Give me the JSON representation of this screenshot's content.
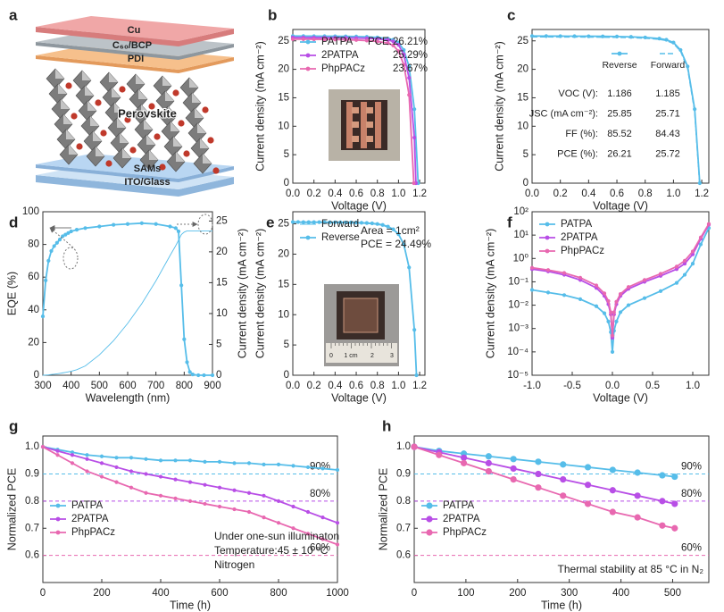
{
  "diagram": {
    "panel_label": "a",
    "layers": [
      "Cu",
      "C₆₀/BCP",
      "PDI",
      "Perovskite",
      "SAMs",
      "ITO/Glass"
    ]
  },
  "chart_data": [
    {
      "type": "line",
      "panel_label": "b",
      "xlabel": "Voltage (V)",
      "ylabel": "Current density (mA cm⁻²)",
      "xlim": [
        0,
        1.25
      ],
      "xticks": [
        {
          "value": 0,
          "label": "0.0"
        },
        0.2,
        0.4,
        0.6,
        0.8,
        {
          "value": 1,
          "label": "1.0"
        },
        1.2
      ],
      "ylim": [
        0,
        27
      ],
      "yticks": [
        0,
        5,
        10,
        15,
        20,
        25
      ],
      "legend": "upper left",
      "legend_note": "PCE:",
      "series": [
        {
          "name": "PATPA",
          "color": "#56bde9",
          "line_style": "solid",
          "marker": "dot",
          "label_note": "26.21%",
          "x": [
            0,
            0.1,
            0.2,
            0.3,
            0.4,
            0.5,
            0.6,
            0.7,
            0.8,
            0.9,
            0.95,
            1.0,
            1.05,
            1.1,
            1.15,
            1.186
          ],
          "values": [
            25.85,
            25.84,
            25.83,
            25.82,
            25.81,
            25.79,
            25.76,
            25.7,
            25.6,
            25.4,
            25.2,
            24.7,
            23.4,
            20.5,
            13.0,
            0
          ]
        },
        {
          "name": "2PATPA",
          "color": "#b84ee6",
          "line_style": "solid",
          "marker": "dot",
          "label_note": "25.29%",
          "x": [
            0,
            0.1,
            0.2,
            0.3,
            0.4,
            0.5,
            0.6,
            0.7,
            0.8,
            0.9,
            0.95,
            1.0,
            1.05,
            1.1,
            1.15,
            1.165
          ],
          "values": [
            25.6,
            25.59,
            25.58,
            25.57,
            25.55,
            25.53,
            25.5,
            25.45,
            25.35,
            25.15,
            24.9,
            24.3,
            22.6,
            18.5,
            8.0,
            0
          ]
        },
        {
          "name": "PhpPACz",
          "color": "#e868b0",
          "line_style": "solid",
          "marker": "dot",
          "label_note": "23.67%",
          "x": [
            0,
            0.1,
            0.2,
            0.3,
            0.4,
            0.5,
            0.6,
            0.7,
            0.8,
            0.9,
            0.95,
            1.0,
            1.05,
            1.1,
            1.145
          ],
          "values": [
            25.3,
            25.29,
            25.28,
            25.26,
            25.24,
            25.2,
            25.15,
            25.05,
            24.9,
            24.6,
            24.2,
            23.2,
            20.8,
            15.5,
            0
          ]
        }
      ]
    },
    {
      "type": "line",
      "panel_label": "c",
      "xlabel": "Voltage (V)",
      "ylabel": "Current density (mA cm⁻²)",
      "xlim": [
        0,
        1.25
      ],
      "xticks": [
        {
          "value": 0,
          "label": "0.0"
        },
        0.2,
        0.4,
        0.6,
        0.8,
        {
          "value": 1,
          "label": "1.0"
        },
        1.2
      ],
      "ylim": [
        0,
        27
      ],
      "yticks": [
        0,
        5,
        10,
        15,
        20,
        25
      ],
      "legend": "upper center",
      "series": [
        {
          "name": "Reverse",
          "color": "#56bde9",
          "line_style": "solid",
          "marker": "dot",
          "x": [
            0,
            0.1,
            0.2,
            0.3,
            0.4,
            0.5,
            0.6,
            0.7,
            0.8,
            0.9,
            0.95,
            1.0,
            1.05,
            1.1,
            1.15,
            1.186
          ],
          "values": [
            25.85,
            25.84,
            25.83,
            25.82,
            25.81,
            25.79,
            25.76,
            25.7,
            25.6,
            25.4,
            25.2,
            24.7,
            23.4,
            20.5,
            13.0,
            0
          ]
        },
        {
          "name": "Forward",
          "color": "#56bde9",
          "line_style": "dashed",
          "marker": "none",
          "x": [
            0,
            0.1,
            0.2,
            0.3,
            0.4,
            0.5,
            0.6,
            0.7,
            0.8,
            0.9,
            0.95,
            1.0,
            1.05,
            1.1,
            1.15,
            1.185
          ],
          "values": [
            25.71,
            25.7,
            25.69,
            25.68,
            25.67,
            25.65,
            25.62,
            25.57,
            25.47,
            25.27,
            25.05,
            24.55,
            23.2,
            20.2,
            12.6,
            0
          ]
        }
      ],
      "table": {
        "rows": [
          {
            "label": "VOC (V):",
            "values": [
              1.186,
              1.185
            ]
          },
          {
            "label": "JSC (mA cm⁻²):",
            "values": [
              25.85,
              25.71
            ]
          },
          {
            "label": "FF (%):",
            "values": [
              85.52,
              84.43
            ]
          },
          {
            "label": "PCE (%):",
            "values": [
              26.21,
              25.72
            ]
          }
        ]
      }
    },
    {
      "type": "line",
      "panel_label": "d",
      "xlabel": "Wavelength (nm)",
      "ylabel": "EQE (%)",
      "y2label": "Current density (mA cm⁻²)",
      "xlim": [
        300,
        900
      ],
      "xticks": [
        300,
        400,
        500,
        600,
        700,
        800,
        900
      ],
      "ylim": [
        0,
        100
      ],
      "yticks": [
        0,
        20,
        40,
        60,
        80,
        100
      ],
      "y2lim": [
        0,
        26.5
      ],
      "y2ticks": [
        0,
        5,
        10,
        15,
        20,
        25
      ],
      "x": [
        300,
        310,
        320,
        330,
        340,
        350,
        360,
        370,
        380,
        390,
        400,
        420,
        450,
        500,
        550,
        600,
        650,
        700,
        750,
        770,
        780,
        790,
        800,
        810,
        820,
        830,
        850,
        870,
        900
      ],
      "series": [
        {
          "color": "#56bde9",
          "line_style": "solid",
          "marker": "dot",
          "values": [
            36,
            58,
            70,
            76,
            79,
            81,
            83,
            85,
            86,
            87,
            88,
            89,
            90,
            91,
            92,
            92.5,
            93,
            92.5,
            91,
            90,
            88,
            55,
            22,
            8,
            2,
            0.5,
            0,
            0,
            0
          ]
        },
        {
          "color": "#56bde9",
          "line_style": "thin",
          "marker": "none",
          "axis": "y2",
          "values": [
            0,
            0.03,
            0.07,
            0.12,
            0.17,
            0.23,
            0.3,
            0.38,
            0.46,
            0.55,
            0.65,
            0.9,
            1.5,
            3.3,
            5.6,
            8.4,
            11.6,
            15.3,
            19.4,
            21.0,
            21.9,
            22.8,
            23.2,
            23.4,
            23.4,
            23.4,
            23.4,
            23.4,
            23.4
          ]
        }
      ]
    },
    {
      "type": "line",
      "panel_label": "e",
      "xlabel": "Voltage (V)",
      "ylabel": "Current density (mA cm⁻²)",
      "xlim": [
        0,
        1.25
      ],
      "xticks": [
        {
          "value": 0,
          "label": "0.0"
        },
        0.2,
        0.4,
        0.6,
        0.8,
        {
          "value": 1,
          "label": "1.0"
        },
        1.2
      ],
      "ylim": [
        0,
        27
      ],
      "yticks": [
        0,
        5,
        10,
        15,
        20,
        25
      ],
      "legend": "upper left",
      "annotations": [
        "Area = 1cm²",
        "PCE = 24.49%"
      ],
      "inset_labels": [
        "0",
        "1 cm",
        "2",
        "3"
      ],
      "x": [
        0,
        0.05,
        0.1,
        0.15,
        0.2,
        0.25,
        0.3,
        0.35,
        0.4,
        0.45,
        0.5,
        0.55,
        0.6,
        0.65,
        0.7,
        0.75,
        0.8,
        0.85,
        0.9,
        0.95,
        1.0,
        1.05,
        1.1,
        1.15,
        1.17
      ],
      "series": [
        {
          "name": "Forward",
          "color": "#56bde9",
          "line_style": "thin",
          "marker": "none",
          "values": [
            25.2,
            25.2,
            25.19,
            25.19,
            25.18,
            25.18,
            25.17,
            25.17,
            25.16,
            25.15,
            25.14,
            25.13,
            25.11,
            25.08,
            25.04,
            24.98,
            24.88,
            24.72,
            24.45,
            24.0,
            23.2,
            21.5,
            17.7,
            7.3,
            0
          ]
        },
        {
          "name": "Reverse",
          "color": "#56bde9",
          "line_style": "solid",
          "marker": "dot",
          "values": [
            25.3,
            25.3,
            25.29,
            25.29,
            25.28,
            25.28,
            25.27,
            25.27,
            25.26,
            25.25,
            25.24,
            25.23,
            25.21,
            25.18,
            25.14,
            25.08,
            24.98,
            24.82,
            24.55,
            24.1,
            23.3,
            21.6,
            17.8,
            7.5,
            0
          ]
        }
      ]
    },
    {
      "type": "line",
      "panel_label": "f",
      "xlabel": "Voltage (V)",
      "ylabel": "Current density (mA cm⁻²)",
      "yscale": "log",
      "xlim": [
        -1,
        1.2
      ],
      "xticks": [
        {
          "value": -1,
          "label": "-1.0"
        },
        -0.5,
        {
          "value": 0,
          "label": "0.0"
        },
        0.5,
        {
          "value": 1,
          "label": "1.0"
        }
      ],
      "ylim": [
        1e-05,
        100
      ],
      "yticks": [
        {
          "value": 1e-05,
          "label": "10⁻⁵"
        },
        {
          "value": 0.0001,
          "label": "10⁻⁴"
        },
        {
          "value": 0.001,
          "label": "10⁻³"
        },
        {
          "value": 0.01,
          "label": "10⁻²"
        },
        {
          "value": 0.1,
          "label": "10⁻¹"
        },
        {
          "value": 1,
          "label": "10⁰"
        },
        {
          "value": 10,
          "label": "10¹"
        },
        {
          "value": 100,
          "label": "10²"
        }
      ],
      "legend": "upper left",
      "x": [
        -1,
        -0.8,
        -0.6,
        -0.4,
        -0.2,
        -0.1,
        -0.05,
        -0.02,
        0,
        0.02,
        0.05,
        0.1,
        0.2,
        0.4,
        0.6,
        0.8,
        0.9,
        1.0,
        1.1,
        1.2
      ],
      "series": [
        {
          "name": "PATPA",
          "color": "#56bde9",
          "line_style": "solid",
          "marker": "dot",
          "values": [
            0.045,
            0.035,
            0.027,
            0.018,
            0.009,
            0.0045,
            0.002,
            0.0007,
            0.0001,
            0.0008,
            0.002,
            0.005,
            0.01,
            0.02,
            0.04,
            0.09,
            0.2,
            0.6,
            4,
            20
          ]
        },
        {
          "name": "2PATPA",
          "color": "#b84ee6",
          "line_style": "solid",
          "marker": "dot",
          "values": [
            0.35,
            0.28,
            0.2,
            0.12,
            0.055,
            0.025,
            0.011,
            0.004,
            0.0004,
            0.004,
            0.011,
            0.025,
            0.05,
            0.1,
            0.18,
            0.35,
            0.6,
            1.5,
            7,
            28
          ]
        },
        {
          "name": "PhpPACz",
          "color": "#e868b0",
          "line_style": "solid",
          "marker": "dot",
          "values": [
            0.4,
            0.32,
            0.24,
            0.15,
            0.07,
            0.032,
            0.015,
            0.005,
            0.0005,
            0.005,
            0.014,
            0.03,
            0.06,
            0.12,
            0.22,
            0.45,
            0.8,
            2,
            8,
            30
          ]
        }
      ]
    },
    {
      "type": "line",
      "panel_label": "g",
      "xlabel": "Time (h)",
      "ylabel": "Normalized PCE",
      "xlim": [
        0,
        1000
      ],
      "xticks": [
        0,
        200,
        400,
        600,
        800,
        1000
      ],
      "ylim": [
        0.5,
        1.04
      ],
      "yticks": [
        0.6,
        0.7,
        0.8,
        0.9,
        {
          "value": 1,
          "label": "1.0"
        }
      ],
      "legend": "lower left",
      "annotations": [
        "Under one-sun illuminaton",
        "Temperature:45 ± 10 °C",
        "Nitrogen"
      ],
      "reference_lines": [
        {
          "value": 0.9,
          "label": "90%",
          "color": "#56bde9"
        },
        {
          "value": 0.8,
          "label": "80%",
          "color": "#b84ee6"
        },
        {
          "value": 0.6,
          "label": "60%",
          "color": "#e868b0"
        }
      ],
      "x": [
        0,
        50,
        100,
        150,
        200,
        250,
        300,
        350,
        400,
        450,
        500,
        550,
        600,
        650,
        700,
        750,
        800,
        850,
        900,
        950,
        1000
      ],
      "series": [
        {
          "name": "PATPA",
          "color": "#56bde9",
          "line_style": "solid",
          "marker": "dot",
          "values": [
            1.0,
            0.99,
            0.98,
            0.97,
            0.965,
            0.96,
            0.96,
            0.955,
            0.95,
            0.95,
            0.95,
            0.945,
            0.945,
            0.94,
            0.94,
            0.935,
            0.935,
            0.93,
            0.925,
            0.92,
            0.915
          ]
        },
        {
          "name": "2PATPA",
          "color": "#b84ee6",
          "line_style": "solid",
          "marker": "dot",
          "values": [
            1.0,
            0.985,
            0.97,
            0.955,
            0.94,
            0.925,
            0.91,
            0.9,
            0.89,
            0.88,
            0.87,
            0.86,
            0.85,
            0.84,
            0.83,
            0.82,
            0.8,
            0.78,
            0.76,
            0.74,
            0.72
          ]
        },
        {
          "name": "PhpPACz",
          "color": "#e868b0",
          "line_style": "solid",
          "marker": "dot",
          "values": [
            1.0,
            0.97,
            0.94,
            0.91,
            0.89,
            0.87,
            0.85,
            0.83,
            0.82,
            0.81,
            0.8,
            0.79,
            0.78,
            0.77,
            0.76,
            0.74,
            0.72,
            0.7,
            0.68,
            0.66,
            0.64
          ]
        }
      ]
    },
    {
      "type": "line",
      "panel_label": "h",
      "xlabel": "Time (h)",
      "ylabel": "Normalized PCE",
      "xlim": [
        0,
        570
      ],
      "xticks": [
        0,
        100,
        200,
        300,
        400,
        500
      ],
      "ylim": [
        0.5,
        1.04
      ],
      "yticks": [
        0.6,
        0.7,
        0.8,
        0.9,
        {
          "value": 1,
          "label": "1.0"
        }
      ],
      "legend": "lower left",
      "annotations": [
        "Thermal stability at 85 °C in N₂"
      ],
      "reference_lines": [
        {
          "value": 0.9,
          "label": "90%",
          "color": "#56bde9"
        },
        {
          "value": 0.8,
          "label": "80%",
          "color": "#b84ee6"
        },
        {
          "value": 0.6,
          "label": "60%",
          "color": "#e868b0"
        }
      ],
      "x": [
        0,
        48,
        96,
        144,
        192,
        240,
        288,
        336,
        384,
        432,
        480,
        504
      ],
      "series": [
        {
          "name": "PATPA",
          "color": "#56bde9",
          "line_style": "solid",
          "marker": "circle",
          "values": [
            1.0,
            0.985,
            0.975,
            0.965,
            0.955,
            0.945,
            0.935,
            0.925,
            0.915,
            0.905,
            0.895,
            0.89
          ]
        },
        {
          "name": "2PATPA",
          "color": "#b84ee6",
          "line_style": "solid",
          "marker": "circle",
          "values": [
            1.0,
            0.98,
            0.96,
            0.94,
            0.92,
            0.9,
            0.88,
            0.86,
            0.84,
            0.82,
            0.8,
            0.79
          ]
        },
        {
          "name": "PhpPACz",
          "color": "#e868b0",
          "line_style": "solid",
          "marker": "circle",
          "values": [
            1.0,
            0.97,
            0.94,
            0.91,
            0.88,
            0.85,
            0.82,
            0.79,
            0.76,
            0.74,
            0.71,
            0.7
          ]
        }
      ]
    }
  ]
}
